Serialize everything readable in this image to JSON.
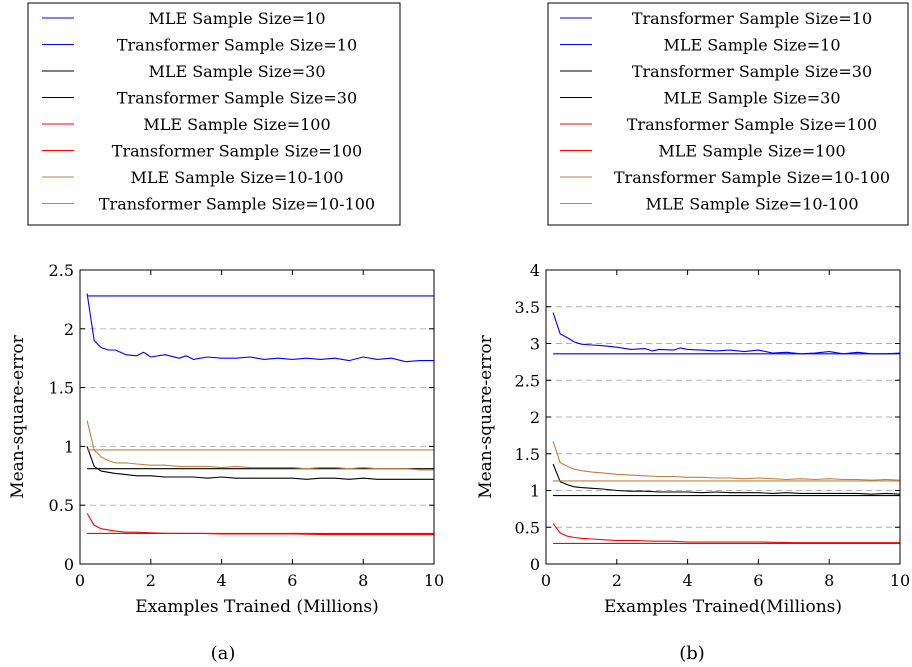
{
  "chart_data": [
    {
      "type": "line",
      "caption": "(a)",
      "xlabel": "Examples Trained (Millions)",
      "ylabel": "Mean-square-error",
      "xlim": [
        0,
        10
      ],
      "ylim": [
        0,
        2.5
      ],
      "xticks": [
        0,
        2,
        4,
        6,
        8,
        10
      ],
      "yticks": [
        0,
        0.5,
        1,
        1.5,
        2,
        2.5
      ],
      "grid": "horizontal dashed",
      "legend_position": "above plot",
      "series": [
        {
          "name": "MLE Sample Size=10",
          "color": "#0000ff",
          "x": [
            0.2,
            10
          ],
          "y": [
            2.28,
            2.28
          ]
        },
        {
          "name": "Transformer Sample Size=10",
          "color": "#0000ff",
          "x": [
            0.2,
            0.4,
            0.6,
            0.8,
            1.0,
            1.3,
            1.6,
            1.8,
            2.0,
            2.4,
            2.8,
            3.0,
            3.2,
            3.6,
            4.0,
            4.4,
            4.8,
            5.2,
            5.6,
            6.0,
            6.4,
            6.8,
            7.2,
            7.6,
            8.0,
            8.4,
            8.8,
            9.2,
            9.6,
            10.0
          ],
          "y": [
            2.3,
            1.9,
            1.84,
            1.82,
            1.82,
            1.78,
            1.77,
            1.8,
            1.76,
            1.78,
            1.75,
            1.77,
            1.74,
            1.76,
            1.75,
            1.75,
            1.76,
            1.74,
            1.75,
            1.74,
            1.75,
            1.74,
            1.75,
            1.73,
            1.76,
            1.74,
            1.75,
            1.72,
            1.73,
            1.73
          ]
        },
        {
          "name": "MLE Sample Size=30",
          "color": "#000000",
          "x": [
            0.2,
            10
          ],
          "y": [
            0.81,
            0.81
          ]
        },
        {
          "name": "Transformer Sample Size=30",
          "color": "#000000",
          "x": [
            0.2,
            0.4,
            0.6,
            0.8,
            1.0,
            1.3,
            1.6,
            2.0,
            2.4,
            2.8,
            3.2,
            3.6,
            4.0,
            4.4,
            4.8,
            5.2,
            5.6,
            6.0,
            6.4,
            6.8,
            7.2,
            7.6,
            8.0,
            8.4,
            8.8,
            9.2,
            9.6,
            10.0
          ],
          "y": [
            1.0,
            0.83,
            0.79,
            0.78,
            0.77,
            0.76,
            0.75,
            0.75,
            0.74,
            0.74,
            0.74,
            0.73,
            0.74,
            0.73,
            0.73,
            0.73,
            0.73,
            0.73,
            0.72,
            0.73,
            0.73,
            0.72,
            0.73,
            0.72,
            0.72,
            0.72,
            0.72,
            0.72
          ]
        },
        {
          "name": "MLE Sample Size=100",
          "color": "#ff0000",
          "x": [
            0.2,
            10
          ],
          "y": [
            0.26,
            0.26
          ]
        },
        {
          "name": "Transformer Sample Size=100",
          "color": "#ff0000",
          "x": [
            0.2,
            0.4,
            0.6,
            0.8,
            1.0,
            1.3,
            1.6,
            2.0,
            2.5,
            3.0,
            3.5,
            4.0,
            5.0,
            6.0,
            7.0,
            8.0,
            9.0,
            10.0
          ],
          "y": [
            0.43,
            0.33,
            0.3,
            0.29,
            0.28,
            0.27,
            0.27,
            0.265,
            0.26,
            0.26,
            0.26,
            0.255,
            0.255,
            0.255,
            0.25,
            0.25,
            0.25,
            0.25
          ]
        },
        {
          "name": "MLE Sample Size=10-100",
          "color": "#bf8040",
          "x": [
            0.2,
            10
          ],
          "y": [
            0.97,
            0.97
          ]
        },
        {
          "name": "Transformer Sample Size=10-100",
          "color": "#bf8040",
          "x": [
            0.2,
            0.4,
            0.6,
            0.8,
            1.0,
            1.3,
            1.6,
            2.0,
            2.4,
            2.8,
            3.2,
            3.6,
            4.0,
            4.4,
            4.8,
            5.2,
            5.6,
            6.0,
            6.4,
            6.8,
            7.2,
            7.6,
            8.0,
            8.4,
            8.8,
            9.2,
            9.6,
            10.0
          ],
          "y": [
            1.22,
            0.97,
            0.91,
            0.88,
            0.86,
            0.86,
            0.85,
            0.84,
            0.84,
            0.83,
            0.83,
            0.83,
            0.82,
            0.83,
            0.82,
            0.82,
            0.82,
            0.82,
            0.81,
            0.82,
            0.82,
            0.81,
            0.82,
            0.81,
            0.81,
            0.81,
            0.8,
            0.8
          ]
        }
      ]
    },
    {
      "type": "line",
      "caption": "(b)",
      "xlabel": "Examples Trained(Millions)",
      "ylabel": "Mean-square-error",
      "xlim": [
        0,
        10
      ],
      "ylim": [
        0,
        4
      ],
      "xticks": [
        0,
        2,
        4,
        6,
        8,
        10
      ],
      "yticks": [
        0,
        0.5,
        1,
        1.5,
        2,
        2.5,
        3,
        3.5,
        4
      ],
      "grid": "horizontal dashed",
      "legend_position": "above plot",
      "series": [
        {
          "name": "Transformer Sample Size=10",
          "color": "#0000ff",
          "x": [
            0.2,
            0.4,
            0.6,
            0.8,
            1.0,
            1.3,
            1.6,
            1.8,
            2.0,
            2.4,
            2.8,
            3.0,
            3.2,
            3.6,
            3.8,
            4.0,
            4.4,
            4.8,
            5.2,
            5.6,
            6.0,
            6.4,
            6.8,
            7.2,
            7.6,
            8.0,
            8.4,
            8.8,
            9.2,
            9.6,
            10.0
          ],
          "y": [
            3.42,
            3.13,
            3.08,
            3.02,
            2.99,
            2.98,
            2.97,
            2.96,
            2.95,
            2.92,
            2.93,
            2.9,
            2.92,
            2.91,
            2.94,
            2.92,
            2.91,
            2.9,
            2.91,
            2.89,
            2.91,
            2.87,
            2.88,
            2.86,
            2.87,
            2.89,
            2.86,
            2.88,
            2.86,
            2.86,
            2.87
          ]
        },
        {
          "name": "MLE Sample Size=10",
          "color": "#0000ff",
          "x": [
            0.2,
            10
          ],
          "y": [
            2.86,
            2.86
          ]
        },
        {
          "name": "Transformer Sample Size=30",
          "color": "#000000",
          "x": [
            0.2,
            0.4,
            0.6,
            0.8,
            1.0,
            1.3,
            1.6,
            2.0,
            2.4,
            2.8,
            3.2,
            3.6,
            4.0,
            4.4,
            4.8,
            5.2,
            5.6,
            6.0,
            6.4,
            6.8,
            7.2,
            7.6,
            8.0,
            8.4,
            8.8,
            9.2,
            9.6,
            10.0
          ],
          "y": [
            1.36,
            1.12,
            1.08,
            1.05,
            1.04,
            1.03,
            1.02,
            1.0,
            0.99,
            0.99,
            0.98,
            0.98,
            0.98,
            0.97,
            0.98,
            0.97,
            0.97,
            0.97,
            0.96,
            0.97,
            0.96,
            0.96,
            0.96,
            0.96,
            0.96,
            0.95,
            0.96,
            0.95
          ]
        },
        {
          "name": "MLE Sample Size=30",
          "color": "#000000",
          "x": [
            0.2,
            10
          ],
          "y": [
            0.93,
            0.93
          ]
        },
        {
          "name": "Transformer Sample Size=100",
          "color": "#ff0000",
          "x": [
            0.2,
            0.4,
            0.6,
            0.8,
            1.0,
            1.3,
            1.6,
            2.0,
            2.5,
            3.0,
            3.5,
            4.0,
            5.0,
            6.0,
            7.0,
            8.0,
            9.0,
            10.0
          ],
          "y": [
            0.55,
            0.42,
            0.38,
            0.36,
            0.35,
            0.34,
            0.33,
            0.32,
            0.32,
            0.31,
            0.31,
            0.3,
            0.3,
            0.3,
            0.29,
            0.29,
            0.29,
            0.29
          ]
        },
        {
          "name": "MLE Sample Size=100",
          "color": "#ff0000",
          "x": [
            0.2,
            10
          ],
          "y": [
            0.28,
            0.28
          ]
        },
        {
          "name": "Transformer Sample Size=10-100",
          "color": "#bf8040",
          "x": [
            0.2,
            0.4,
            0.6,
            0.8,
            1.0,
            1.3,
            1.6,
            2.0,
            2.4,
            2.8,
            3.2,
            3.6,
            4.0,
            4.4,
            4.8,
            5.2,
            5.6,
            6.0,
            6.4,
            6.8,
            7.2,
            7.6,
            8.0,
            8.4,
            8.8,
            9.2,
            9.6,
            10.0
          ],
          "y": [
            1.67,
            1.38,
            1.33,
            1.29,
            1.27,
            1.25,
            1.24,
            1.22,
            1.21,
            1.2,
            1.19,
            1.19,
            1.18,
            1.18,
            1.17,
            1.17,
            1.16,
            1.17,
            1.16,
            1.15,
            1.16,
            1.15,
            1.16,
            1.15,
            1.15,
            1.14,
            1.15,
            1.14
          ]
        },
        {
          "name": "MLE Sample Size=10-100",
          "color": "#bf8040",
          "x": [
            0.2,
            10
          ],
          "y": [
            1.13,
            1.13
          ]
        }
      ]
    }
  ]
}
